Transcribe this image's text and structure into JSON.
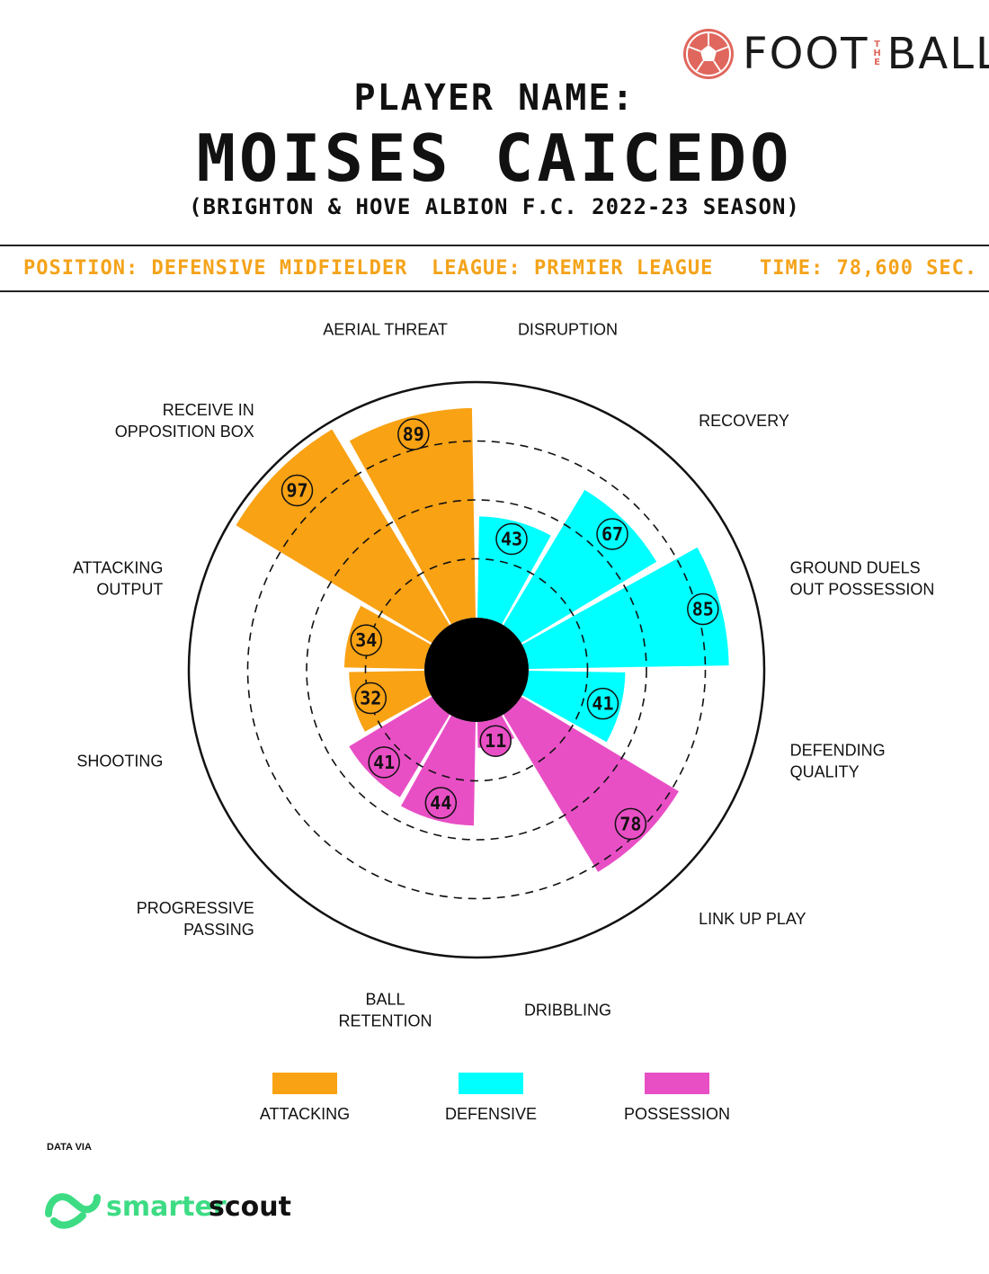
{
  "header": {
    "player_label": "PLAYER NAME:",
    "player_name": "MOISES CAICEDO",
    "subtitle": "(BRIGHTON & HOVE ALBION F.C. 2022-23 SEASON)"
  },
  "brand": {
    "left": "FOOT",
    "middle": "THE",
    "right": "BALL",
    "accent": "#e0675d"
  },
  "meta": {
    "position": "POSITION: DEFENSIVE MIDFIELDER",
    "league": "LEAGUE: PREMIER LEAGUE",
    "time": "TIME: 78,600 SEC.",
    "color": "#f4a31a"
  },
  "colors": {
    "attacking": "#f9a214",
    "defensive": "#00ffff",
    "possession": "#e84fc5",
    "center": "#000000"
  },
  "chart_data": {
    "type": "polar-bar",
    "rlim": [
      0,
      100
    ],
    "rings": [
      25,
      50,
      75
    ],
    "categories": [
      {
        "name": "DISRUPTION",
        "value": 43,
        "group": "defensive",
        "label": [
          "DISRUPTION"
        ]
      },
      {
        "name": "RECOVERY",
        "value": 67,
        "group": "defensive",
        "label": [
          "RECOVERY"
        ]
      },
      {
        "name": "GROUND DUELS OUT POSSESSION",
        "value": 85,
        "group": "defensive",
        "label": [
          "GROUND DUELS",
          "OUT POSSESSION"
        ]
      },
      {
        "name": "DEFENDING QUALITY",
        "value": 41,
        "group": "defensive",
        "label": [
          "DEFENDING",
          "QUALITY"
        ]
      },
      {
        "name": "LINK UP PLAY",
        "value": 78,
        "group": "possession",
        "label": [
          "LINK UP PLAY"
        ]
      },
      {
        "name": "DRIBBLING",
        "value": 11,
        "group": "possession",
        "label": [
          "DRIBBLING"
        ]
      },
      {
        "name": "BALL RETENTION",
        "value": 44,
        "group": "possession",
        "label": [
          "BALL",
          "RETENTION"
        ]
      },
      {
        "name": "PROGRESSIVE PASSING",
        "value": 41,
        "group": "possession",
        "label": [
          "PROGRESSIVE",
          "PASSING"
        ]
      },
      {
        "name": "SHOOTING",
        "value": 32,
        "group": "attacking",
        "label": [
          "SHOOTING"
        ]
      },
      {
        "name": "ATTACKING OUTPUT",
        "value": 34,
        "group": "attacking",
        "label": [
          "ATTACKING",
          "OUTPUT"
        ]
      },
      {
        "name": "RECEIVE IN OPPOSITION BOX",
        "value": 97,
        "group": "attacking",
        "label": [
          "RECEIVE IN",
          "OPPOSITION BOX"
        ]
      },
      {
        "name": "AERIAL THREAT",
        "value": 89,
        "group": "attacking",
        "label": [
          "AERIAL THREAT"
        ]
      }
    ],
    "legend": [
      {
        "key": "attacking",
        "label": "ATTACKING"
      },
      {
        "key": "defensive",
        "label": "DEFENSIVE"
      },
      {
        "key": "possession",
        "label": "POSSESSION"
      }
    ],
    "legend_placement": "bottom"
  },
  "footer": {
    "data_via": "DATA VIA",
    "source_left": "smarter",
    "source_right": "scout",
    "source_color": "#3ddc84"
  }
}
